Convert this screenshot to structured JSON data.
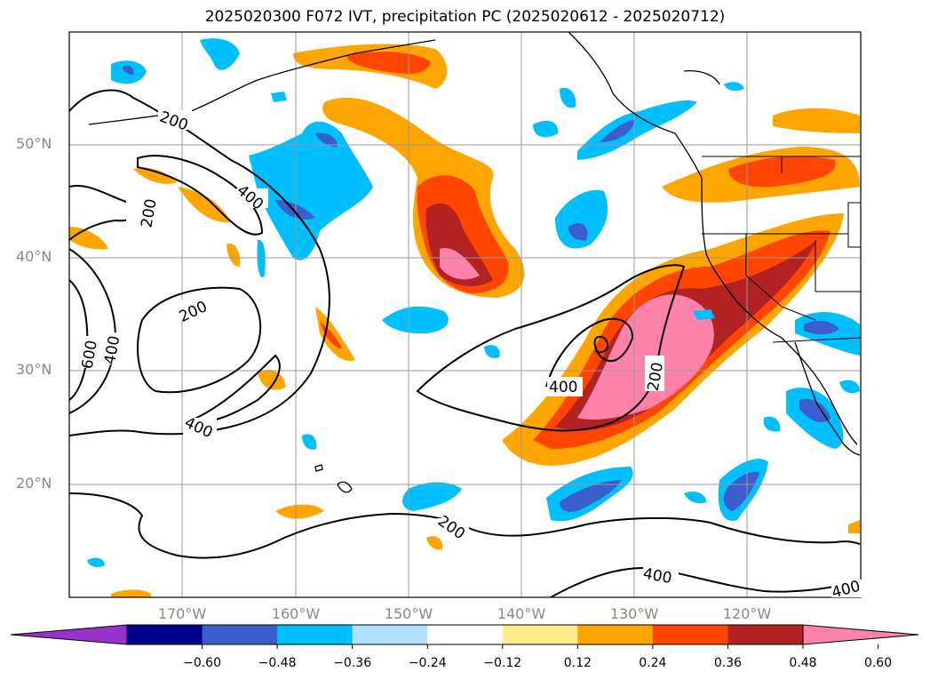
{
  "title": "2025020300 F072 IVT, precipitation PC (2025020612 - 2025020712)",
  "lat_labels": [
    "50°N",
    "40°N",
    "30°N",
    "20°N"
  ],
  "lon_labels": [
    "170°W",
    "160°W",
    "150°W",
    "140°W",
    "130°W",
    "120°W"
  ],
  "contour_labels": [
    "200",
    "400",
    "200",
    "200",
    "600",
    "400",
    "400",
    "400",
    "200",
    "200",
    "400",
    "400"
  ],
  "colorbar": {
    "ticks": [
      "−0.60",
      "−0.48",
      "−0.36",
      "−0.24",
      "−0.12",
      "0.12",
      "0.24",
      "0.36",
      "0.48",
      "0.60"
    ],
    "colors": [
      "#9932cc",
      "#00008b",
      "#3a5fcd",
      "#00bfff",
      "#b0e2ff",
      "#ffffff",
      "#ffec8b",
      "#ffa500",
      "#ff4500",
      "#b22222",
      "#ff82ab"
    ]
  },
  "colors": {
    "pc_pos_low": "#ffec8b",
    "pc_pos_mid": "#ffa500",
    "pc_pos_high": "#ff4500",
    "pc_pos_higher": "#b22222",
    "pc_pos_max": "#ff82ab",
    "pc_neg_low": "#b0e2ff",
    "pc_neg_mid": "#00bfff",
    "pc_neg_high": "#3a5fcd",
    "grid": "#999999",
    "label_gray": "#888888"
  }
}
